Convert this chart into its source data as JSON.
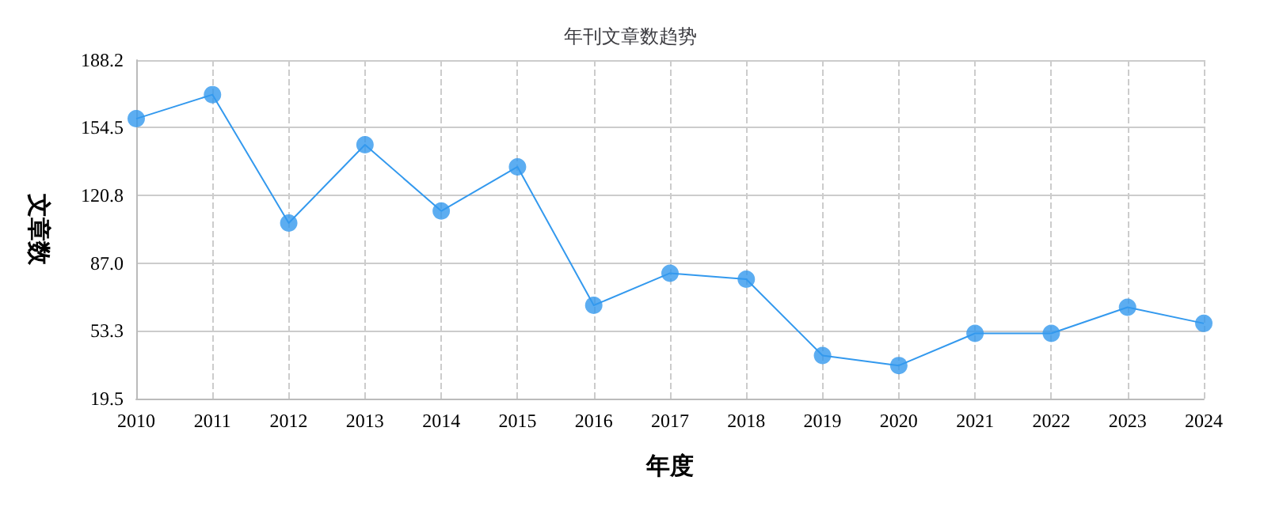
{
  "chart_data": {
    "type": "line",
    "title": "年刊文章数趋势",
    "xlabel": "年度",
    "ylabel": "文章数",
    "categories": [
      "2010",
      "2011",
      "2012",
      "2013",
      "2014",
      "2015",
      "2016",
      "2017",
      "2018",
      "2019",
      "2020",
      "2021",
      "2022",
      "2023",
      "2024"
    ],
    "series": [
      {
        "color": "#3399ee",
        "values": [
          159,
          171,
          107,
          146,
          113,
          135,
          66,
          82,
          79,
          41,
          36,
          52,
          52,
          65,
          57
        ]
      }
    ],
    "ylim": [
      19.5,
      188.2
    ],
    "yticks": [
      19.5,
      53.3,
      {
        "value": 87,
        "label": "87.0"
      },
      120.8,
      154.5,
      188.2
    ],
    "grid": true,
    "marker": "circle",
    "line_style": "solid"
  }
}
